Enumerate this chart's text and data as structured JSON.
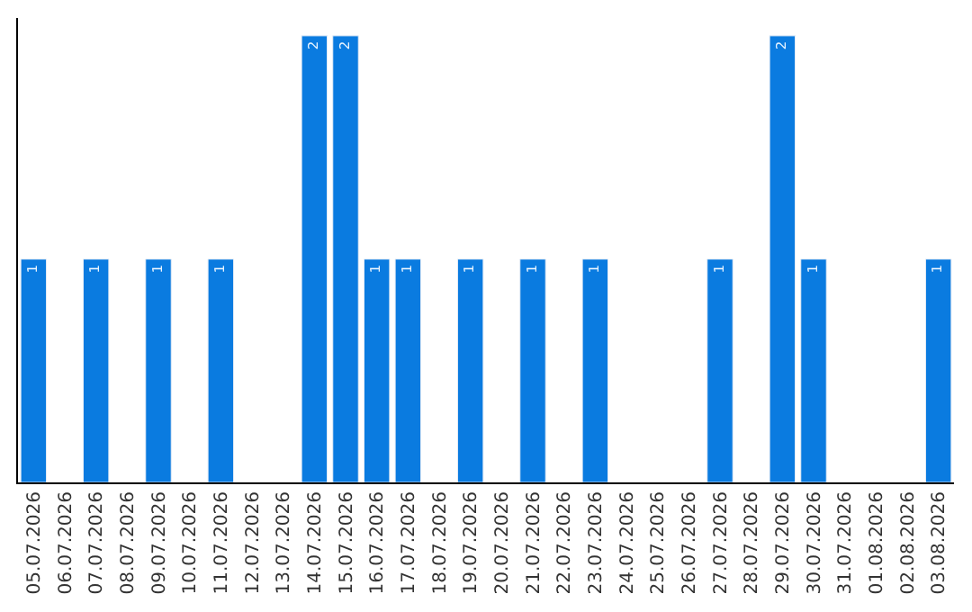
{
  "chart_data": {
    "type": "bar",
    "categories": [
      "05.07.2026",
      "06.07.2026",
      "07.07.2026",
      "08.07.2026",
      "09.07.2026",
      "10.07.2026",
      "11.07.2026",
      "12.07.2026",
      "13.07.2026",
      "14.07.2026",
      "15.07.2026",
      "16.07.2026",
      "17.07.2026",
      "18.07.2026",
      "19.07.2026",
      "20.07.2026",
      "21.07.2026",
      "22.07.2026",
      "23.07.2026",
      "24.07.2026",
      "25.07.2026",
      "26.07.2026",
      "27.07.2026",
      "28.07.2026",
      "29.07.2026",
      "30.07.2026",
      "31.07.2026",
      "01.08.2026",
      "02.08.2026",
      "03.08.2026"
    ],
    "values": [
      1,
      null,
      1,
      null,
      1,
      null,
      1,
      null,
      null,
      2,
      2,
      1,
      1,
      null,
      1,
      null,
      1,
      null,
      1,
      null,
      null,
      null,
      1,
      null,
      2,
      1,
      null,
      null,
      null,
      1
    ],
    "value_labels": [
      "1",
      null,
      "1",
      null,
      "1",
      null,
      "1",
      null,
      null,
      "2",
      "2",
      "1",
      "1",
      null,
      "1",
      null,
      "1",
      null,
      "1",
      null,
      null,
      null,
      "1",
      null,
      "2",
      "1",
      null,
      null,
      null,
      "1"
    ],
    "color": "#0a7be0",
    "ylim": [
      0,
      2.08
    ],
    "tick_labels": "x",
    "legend": false
  }
}
